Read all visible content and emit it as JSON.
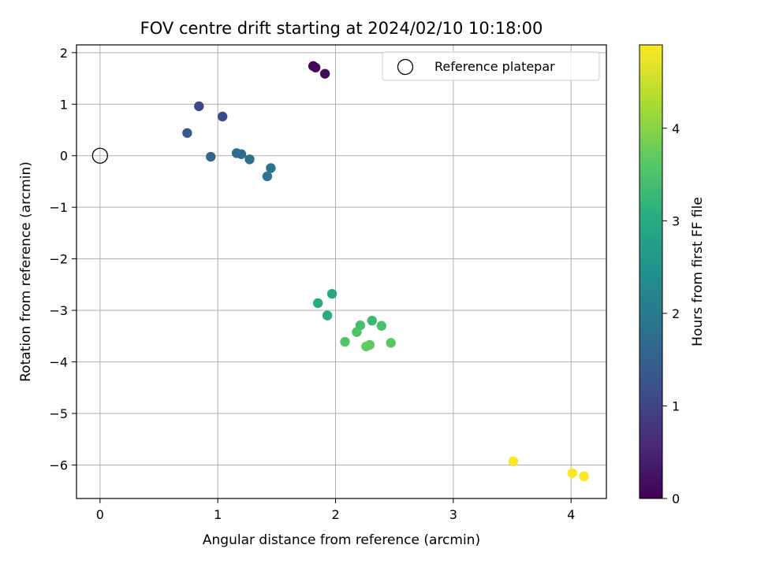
{
  "chart_data": {
    "type": "scatter",
    "title": "FOV centre drift starting at 2024/02/10 10:18:00",
    "xlabel": "Angular distance from reference (arcmin)",
    "ylabel": "Rotation from reference (arcmin)",
    "xlim": [
      -0.2,
      4.3
    ],
    "ylim": [
      -6.65,
      2.15
    ],
    "xticks": [
      0,
      1,
      2,
      3,
      4
    ],
    "yticks": [
      2,
      1,
      0,
      -1,
      -2,
      -3,
      -4,
      -5,
      -6
    ],
    "grid": true,
    "legend": {
      "position": "top-right",
      "entries": [
        "Reference platepar"
      ]
    },
    "reference_point": {
      "label": "Reference platepar",
      "x": 0,
      "y": 0
    },
    "colorbar": {
      "label": "Hours from first FF file",
      "range": [
        0,
        4.9
      ],
      "ticks": [
        0,
        1,
        2,
        3,
        4
      ],
      "colormap": "viridis"
    },
    "points": [
      {
        "x": 1.81,
        "y": 1.74,
        "hours": 0.05
      },
      {
        "x": 1.83,
        "y": 1.71,
        "hours": 0.1
      },
      {
        "x": 1.91,
        "y": 1.59,
        "hours": 0.15
      },
      {
        "x": 0.84,
        "y": 0.96,
        "hours": 1.05
      },
      {
        "x": 1.04,
        "y": 0.76,
        "hours": 1.15
      },
      {
        "x": 0.74,
        "y": 0.44,
        "hours": 1.35
      },
      {
        "x": 0.94,
        "y": -0.02,
        "hours": 1.6
      },
      {
        "x": 1.16,
        "y": 0.05,
        "hours": 1.7
      },
      {
        "x": 1.2,
        "y": 0.03,
        "hours": 1.75
      },
      {
        "x": 1.27,
        "y": -0.07,
        "hours": 1.8
      },
      {
        "x": 1.45,
        "y": -0.24,
        "hours": 1.85
      },
      {
        "x": 1.42,
        "y": -0.4,
        "hours": 1.9
      },
      {
        "x": 1.97,
        "y": -2.68,
        "hours": 2.9
      },
      {
        "x": 1.85,
        "y": -2.86,
        "hours": 2.95
      },
      {
        "x": 1.93,
        "y": -3.1,
        "hours": 3.0
      },
      {
        "x": 2.31,
        "y": -3.2,
        "hours": 3.3
      },
      {
        "x": 2.21,
        "y": -3.29,
        "hours": 3.4
      },
      {
        "x": 2.39,
        "y": -3.3,
        "hours": 3.45
      },
      {
        "x": 2.18,
        "y": -3.42,
        "hours": 3.5
      },
      {
        "x": 2.08,
        "y": -3.61,
        "hours": 3.55
      },
      {
        "x": 2.47,
        "y": -3.63,
        "hours": 3.6
      },
      {
        "x": 2.29,
        "y": -3.67,
        "hours": 3.65
      },
      {
        "x": 2.26,
        "y": -3.7,
        "hours": 3.7
      },
      {
        "x": 3.51,
        "y": -5.93,
        "hours": 4.85
      },
      {
        "x": 4.01,
        "y": -6.16,
        "hours": 4.88
      },
      {
        "x": 4.11,
        "y": -6.22,
        "hours": 4.9
      }
    ]
  }
}
